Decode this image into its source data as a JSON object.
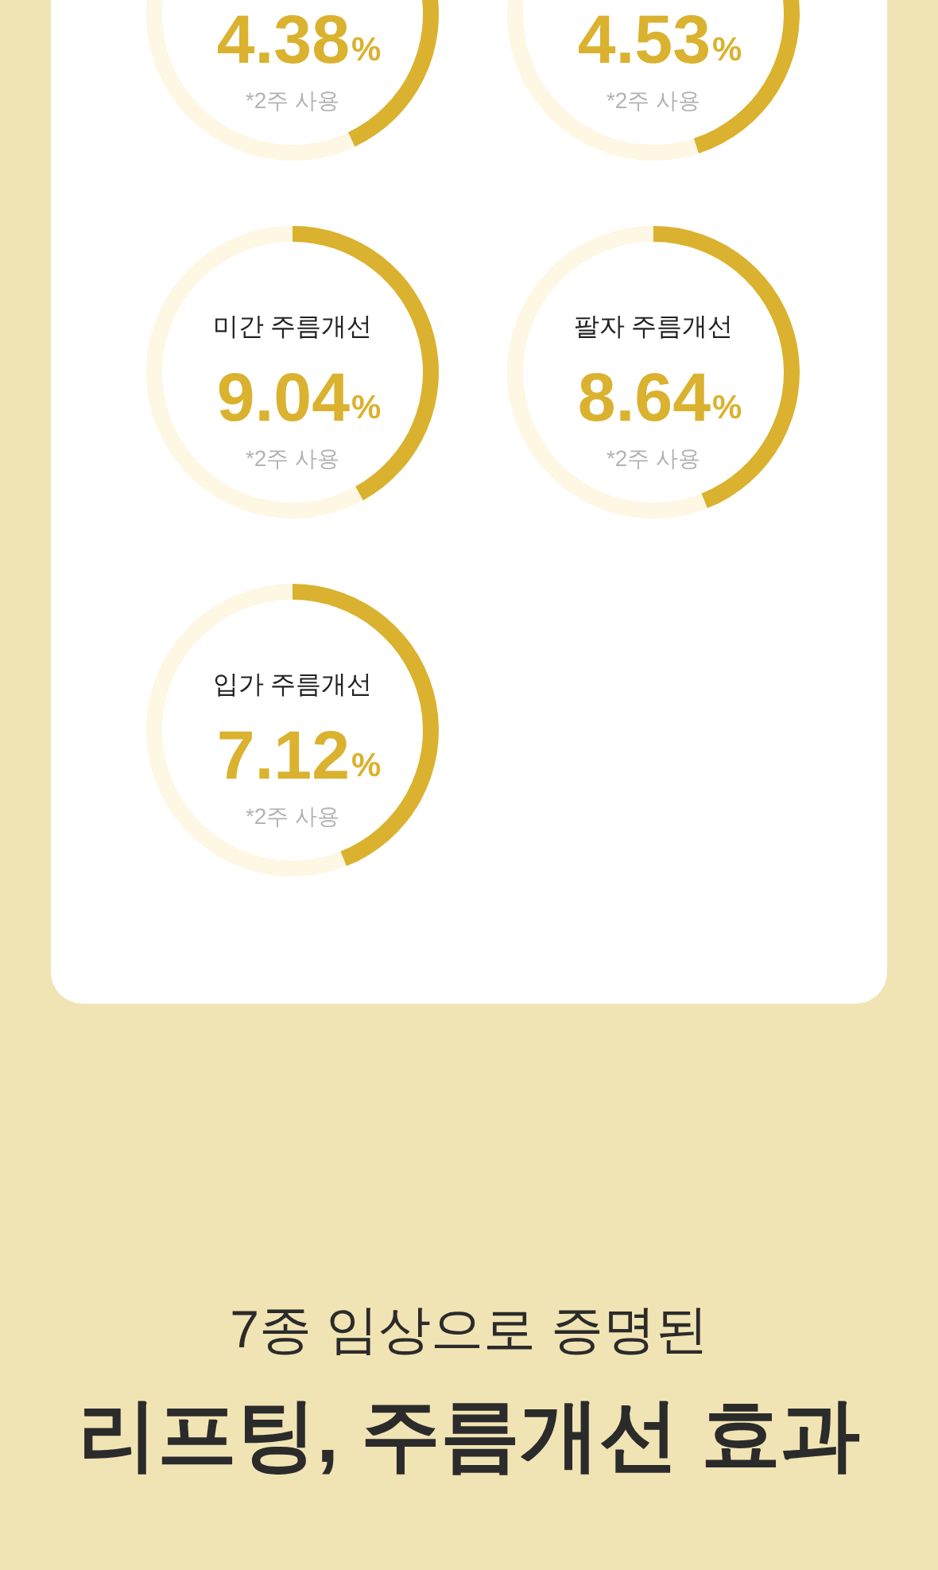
{
  "chart_data": [
    {
      "type": "donut",
      "categories": [
        null,
        null
      ],
      "values": [
        43,
        57
      ],
      "colors": [
        "#dab22f",
        "#fdf7e3"
      ],
      "annotations": [
        "4.38%",
        "*2주 사용"
      ]
    },
    {
      "type": "donut",
      "categories": [
        null,
        null
      ],
      "values": [
        45,
        55
      ],
      "colors": [
        "#dab22f",
        "#fdf7e3"
      ],
      "annotations": [
        "4.53%",
        "*2주 사용"
      ]
    },
    {
      "type": "donut",
      "title": "미간 주름개선",
      "categories": [
        null,
        null
      ],
      "values": [
        42,
        58
      ],
      "colors": [
        "#dab22f",
        "#fdf7e3"
      ],
      "annotations": [
        "9.04%",
        "*2주 사용"
      ]
    },
    {
      "type": "donut",
      "title": "팔자 주름개선",
      "categories": [
        null,
        null
      ],
      "values": [
        44,
        56
      ],
      "colors": [
        "#dab22f",
        "#fdf7e3"
      ],
      "annotations": [
        "8.64%",
        "*2주 사용"
      ]
    },
    {
      "type": "donut",
      "title": "입가 주름개선",
      "categories": [
        null,
        null
      ],
      "values": [
        44,
        56
      ],
      "colors": [
        "#dab22f",
        "#fdf7e3"
      ],
      "annotations": [
        "7.12%",
        "*2주 사용"
      ]
    },
    {
      "type": "other",
      "subtitle": "7종 임상으로 증명된",
      "title": "리프팅, 주름개선 효과"
    }
  ]
}
